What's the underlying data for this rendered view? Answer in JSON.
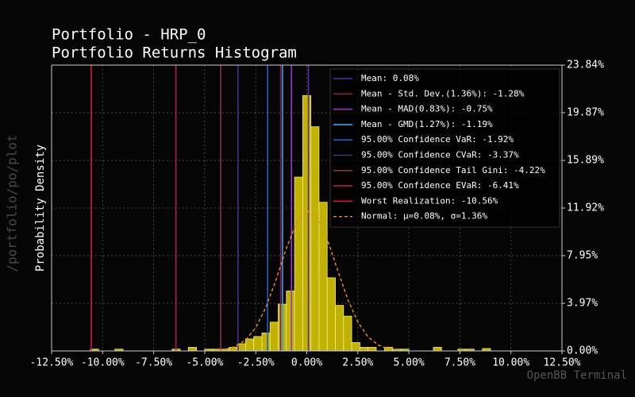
{
  "chart_data": {
    "type": "histogram",
    "title": "Portfolio - HRP_0",
    "subtitle": "Portfolio Returns Histogram",
    "y_label": "Probability Density",
    "side_label": "/portfolio/po/plot",
    "footer": "OpenBB Terminal",
    "color": "#d6c400",
    "edge_color": "#f2ea8c",
    "grid": true,
    "bins": [
      -10.6,
      -10.2,
      -9.8,
      -9.4,
      -9.0,
      -8.6,
      -8.2,
      -7.8,
      -7.4,
      -7.0,
      -6.6,
      -6.2,
      -5.8,
      -5.4,
      -5.0,
      -4.6,
      -4.2,
      -3.8,
      -3.4,
      -3.0,
      -2.6,
      -2.2,
      -1.8,
      -1.4,
      -1.0,
      -0.6,
      -0.2,
      0.2,
      0.6,
      1.0,
      1.4,
      1.8,
      2.2,
      2.6,
      3.0,
      3.4,
      3.8,
      4.2,
      4.6,
      5.0,
      5.4,
      5.8,
      6.2,
      6.6,
      7.0,
      7.4,
      7.8,
      8.2,
      8.6,
      9.0,
      9.4,
      9.8
    ],
    "values": [
      0.15,
      0,
      0,
      0.15,
      0,
      0,
      0,
      0,
      0,
      0,
      0.15,
      0,
      0.3,
      0,
      0.15,
      0.15,
      0.15,
      0.3,
      0.6,
      1.0,
      1.2,
      1.5,
      2.4,
      3.9,
      5.0,
      14.5,
      21.3,
      18.7,
      12.4,
      6.1,
      3.8,
      2.9,
      0.7,
      0.3,
      0.3,
      0,
      0.3,
      0.15,
      0.15,
      0,
      0,
      0,
      0.3,
      0,
      0,
      0.15,
      0.15,
      0,
      0.2,
      0,
      0
    ],
    "lines": [
      {
        "name": "Mean: 0.08%",
        "value": 0.08,
        "color": "#5a2ea6"
      },
      {
        "name": "Mean - Std. Dev.(1.36%): -1.28%",
        "value": -1.28,
        "color": "#8c1c50"
      },
      {
        "name": "Mean - MAD(0.83%): -0.75%",
        "value": -0.75,
        "color": "#9b35d4"
      },
      {
        "name": "Mean - GMD(1.27%): -1.19%",
        "value": -1.19,
        "color": "#3a9cf0"
      },
      {
        "name": "95.00% Confidence VaR: -1.92%",
        "value": -1.92,
        "color": "#2060c0"
      },
      {
        "name": "95.00% Confidence CVaR: -3.37%",
        "value": -3.37,
        "color": "#4a2c90"
      },
      {
        "name": "95.00% Confidence Tail Gini: -4.22%",
        "value": -4.22,
        "color": "#8a3058"
      },
      {
        "name": "95.00% Confidence EVaR: -6.41%",
        "value": -6.41,
        "color": "#b02048"
      },
      {
        "name": "Worst Realization: -10.56%",
        "value": -10.56,
        "color": "#d01838"
      }
    ],
    "normal": {
      "name": "Normal: μ=0.08%, σ=1.36%",
      "color": "#f08a20",
      "x": [
        -4.5,
        -4,
        -3.5,
        -3,
        -2.5,
        -2,
        -1.5,
        -1,
        -0.5,
        0,
        0.5,
        1,
        1.5,
        2,
        2.5,
        3,
        3.5,
        4,
        4.5
      ],
      "values": [
        0.04,
        0.13,
        0.37,
        0.9,
        1.94,
        3.64,
        5.97,
        8.56,
        10.71,
        11.71,
        11.18,
        9.33,
        6.8,
        4.33,
        2.41,
        1.17,
        0.5,
        0.18,
        0.06
      ]
    },
    "xlim": [
      -12.5,
      12.5
    ],
    "xticks": [
      {
        "value": -12.5,
        "label": "-12.50%"
      },
      {
        "value": -10,
        "label": "-10.00%"
      },
      {
        "value": -7.5,
        "label": "-7.50%"
      },
      {
        "value": -5,
        "label": "-5.00%"
      },
      {
        "value": -2.5,
        "label": "-2.50%"
      },
      {
        "value": 0,
        "label": "0.00%"
      },
      {
        "value": 2.5,
        "label": "2.50%"
      },
      {
        "value": 5,
        "label": "5.00%"
      },
      {
        "value": 7.5,
        "label": "7.50%"
      },
      {
        "value": 10,
        "label": "10.00%"
      },
      {
        "value": 12.5,
        "label": "12.50%"
      }
    ],
    "ylim": [
      0,
      23.84
    ],
    "yticks": [
      {
        "value": 0,
        "label": "0.00%"
      },
      {
        "value": 3.97,
        "label": "3.97%"
      },
      {
        "value": 7.95,
        "label": "7.95%"
      },
      {
        "value": 11.92,
        "label": "11.92%"
      },
      {
        "value": 15.89,
        "label": "15.89%"
      },
      {
        "value": 19.87,
        "label": "19.87%"
      },
      {
        "value": 23.84,
        "label": "23.84%"
      }
    ]
  }
}
